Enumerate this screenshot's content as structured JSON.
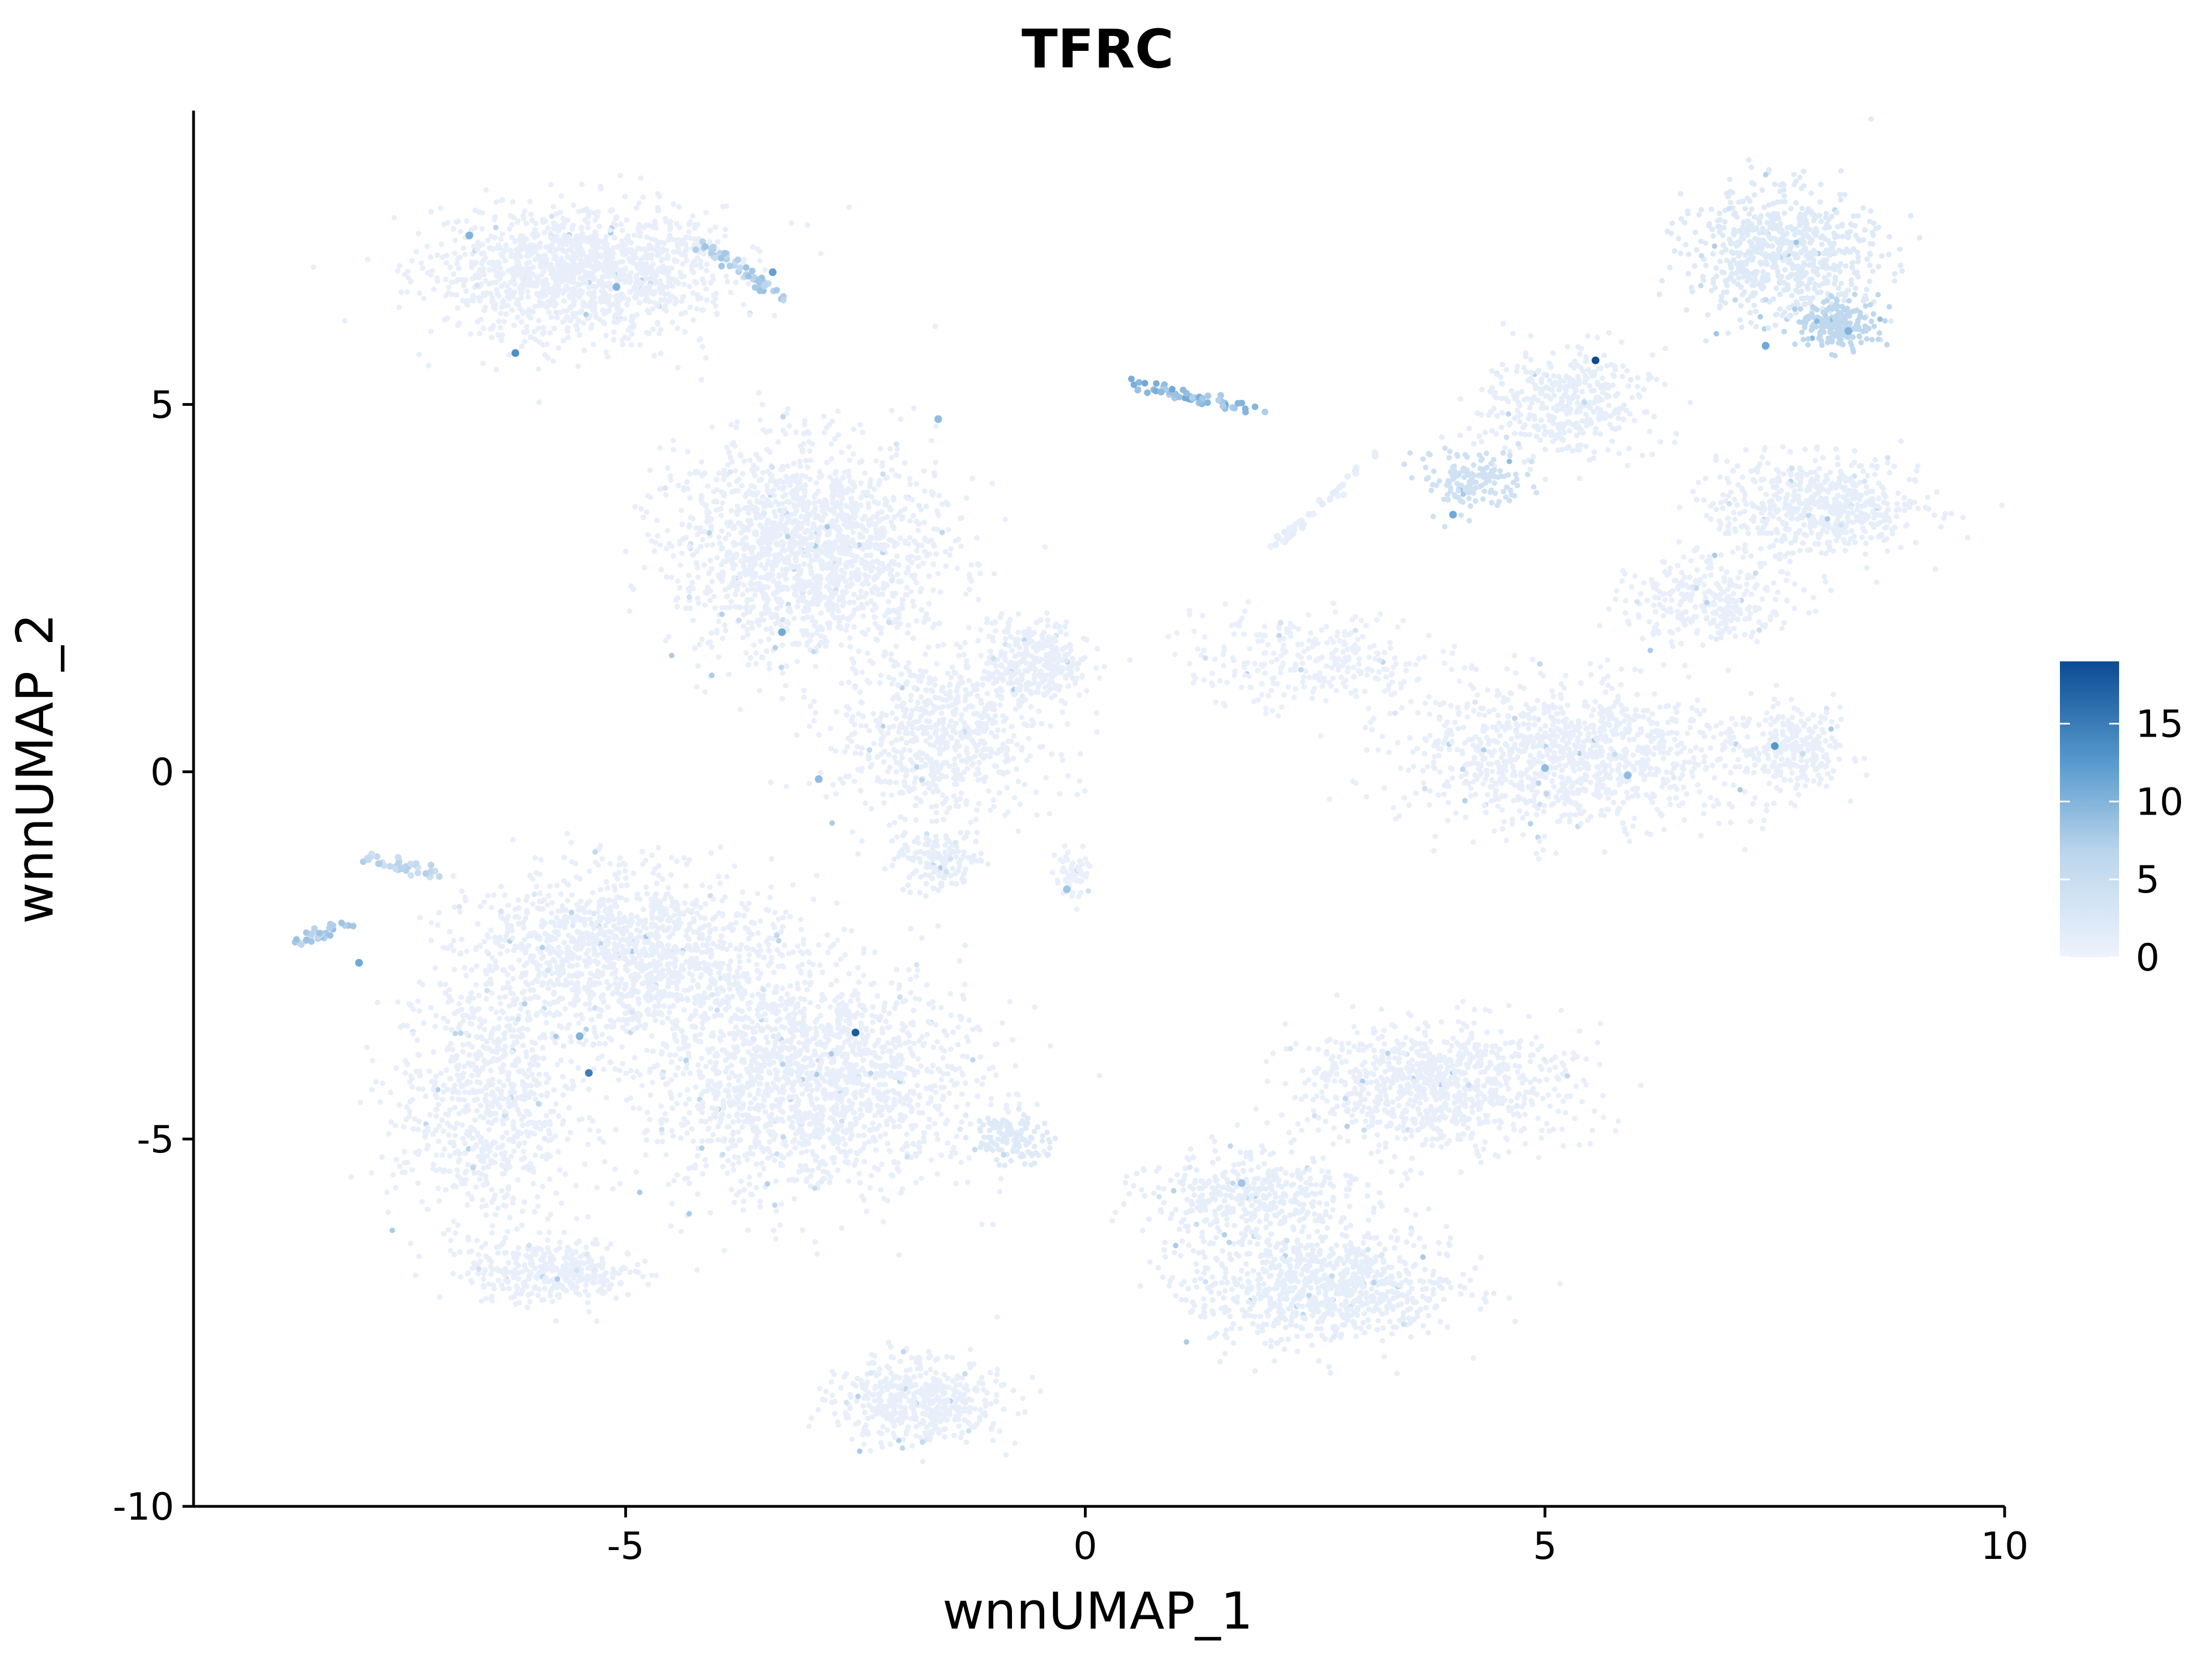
{
  "chart_data": {
    "type": "scatter",
    "title": "TFRC",
    "xlabel": "wnnUMAP_1",
    "ylabel": "wnnUMAP_2",
    "xlim": [
      -9.7,
      10
    ],
    "ylim": [
      -10,
      9
    ],
    "x_ticks": [
      -5,
      0,
      5,
      10
    ],
    "x_tick_labels": [
      "-5",
      "0",
      "5",
      "10"
    ],
    "y_ticks": [
      -10,
      -5,
      0,
      5
    ],
    "y_tick_labels": [
      "-10",
      "-5",
      "0",
      "5"
    ],
    "grid": false,
    "legend": {
      "position": "right",
      "type": "colorbar",
      "min": 0,
      "max": 19,
      "ticks": [
        0,
        5,
        10,
        15
      ],
      "tick_labels": [
        "0",
        "5",
        "10",
        "15"
      ],
      "color_low": "#eef3fc",
      "color_high": "#0b4b93"
    },
    "clusters": [
      {
        "center": [
          -5.5,
          6.8
        ],
        "spread": [
          1.4,
          0.8
        ],
        "n": 1400,
        "value": 0.4
      },
      {
        "center": [
          -3.0,
          3.0
        ],
        "spread": [
          1.3,
          1.3
        ],
        "n": 1700,
        "value": 0.4
      },
      {
        "center": [
          -1.6,
          0.5
        ],
        "spread": [
          1.0,
          1.1
        ],
        "n": 700,
        "value": 0.4
      },
      {
        "center": [
          -0.5,
          1.5
        ],
        "spread": [
          0.5,
          0.5
        ],
        "n": 300,
        "value": 0.4
      },
      {
        "center": [
          -1.6,
          -1.2
        ],
        "spread": [
          0.4,
          0.4
        ],
        "n": 150,
        "value": 0.5
      },
      {
        "center": [
          -0.1,
          -1.4
        ],
        "spread": [
          0.2,
          0.3
        ],
        "n": 60,
        "value": 0.3
      },
      {
        "center": [
          7.6,
          7.0
        ],
        "spread": [
          0.9,
          0.8
        ],
        "n": 700,
        "value": 1.0
      },
      {
        "center": [
          8.2,
          6.1
        ],
        "spread": [
          0.4,
          0.3
        ],
        "n": 200,
        "value": 3.0
      },
      {
        "center": [
          5.2,
          5.0
        ],
        "spread": [
          0.8,
          0.7
        ],
        "n": 400,
        "value": 0.6
      },
      {
        "center": [
          4.2,
          4.0
        ],
        "spread": [
          0.5,
          0.4
        ],
        "n": 150,
        "value": 2.0
      },
      {
        "center": [
          8.0,
          3.6
        ],
        "spread": [
          1.0,
          0.6
        ],
        "n": 600,
        "value": 0.5
      },
      {
        "center": [
          6.8,
          2.3
        ],
        "spread": [
          0.8,
          0.5
        ],
        "n": 300,
        "value": 0.4
      },
      {
        "center": [
          5.3,
          0.2
        ],
        "spread": [
          1.6,
          0.9
        ],
        "n": 1100,
        "value": 0.4
      },
      {
        "center": [
          7.7,
          0.3
        ],
        "spread": [
          0.5,
          0.5
        ],
        "n": 250,
        "value": 0.4
      },
      {
        "center": [
          2.5,
          1.5
        ],
        "spread": [
          1.2,
          0.6
        ],
        "n": 300,
        "value": 0.3
      },
      {
        "center": [
          -5.0,
          -2.5
        ],
        "spread": [
          1.5,
          1.0
        ],
        "n": 1300,
        "value": 0.4
      },
      {
        "center": [
          -3.0,
          -4.2
        ],
        "spread": [
          1.6,
          1.4
        ],
        "n": 1800,
        "value": 0.4
      },
      {
        "center": [
          -6.5,
          -4.5
        ],
        "spread": [
          0.9,
          1.6
        ],
        "n": 800,
        "value": 0.4
      },
      {
        "center": [
          -5.8,
          -6.8
        ],
        "spread": [
          0.8,
          0.4
        ],
        "n": 350,
        "value": 0.4
      },
      {
        "center": [
          -1.8,
          -8.6
        ],
        "spread": [
          0.8,
          0.5
        ],
        "n": 500,
        "value": 0.4
      },
      {
        "center": [
          3.8,
          -4.3
        ],
        "spread": [
          1.3,
          0.8
        ],
        "n": 900,
        "value": 0.4
      },
      {
        "center": [
          2.6,
          -7.0
        ],
        "spread": [
          1.3,
          0.7
        ],
        "n": 900,
        "value": 0.5
      },
      {
        "center": [
          1.8,
          -5.8
        ],
        "spread": [
          1.0,
          0.5
        ],
        "n": 400,
        "value": 0.5
      },
      {
        "center": [
          -0.8,
          -5.0
        ],
        "spread": [
          0.4,
          0.3
        ],
        "n": 120,
        "value": 1.0
      }
    ],
    "strands": [
      {
        "from": [
          0.5,
          5.3
        ],
        "to": [
          1.9,
          4.9
        ],
        "n": 60,
        "value": 6.0
      },
      {
        "from": [
          -8.6,
          -2.3
        ],
        "to": [
          -8.0,
          -2.1
        ],
        "n": 30,
        "value": 4.0
      },
      {
        "from": [
          -7.8,
          -1.2
        ],
        "to": [
          -7.0,
          -1.4
        ],
        "n": 40,
        "value": 3.0
      },
      {
        "from": [
          -4.2,
          7.2
        ],
        "to": [
          -3.3,
          6.5
        ],
        "n": 50,
        "value": 4.0
      },
      {
        "from": [
          2.0,
          3.0
        ],
        "to": [
          3.2,
          4.3
        ],
        "n": 40,
        "value": 0.5
      }
    ],
    "highlights": [
      {
        "x": 5.55,
        "y": 5.6,
        "value": 19
      },
      {
        "x": -2.5,
        "y": -3.55,
        "value": 17
      },
      {
        "x": -5.4,
        "y": -4.1,
        "value": 13
      },
      {
        "x": -6.2,
        "y": 5.7,
        "value": 11
      },
      {
        "x": 7.5,
        "y": 0.35,
        "value": 10
      },
      {
        "x": -3.3,
        "y": 1.9,
        "value": 8
      },
      {
        "x": 7.4,
        "y": 5.8,
        "value": 8
      },
      {
        "x": -6.7,
        "y": 7.3,
        "value": 7
      },
      {
        "x": 5.0,
        "y": 0.05,
        "value": 6
      },
      {
        "x": 5.9,
        "y": -0.05,
        "value": 6
      },
      {
        "x": -5.5,
        "y": -3.6,
        "value": 7
      },
      {
        "x": -7.9,
        "y": -2.6,
        "value": 8
      },
      {
        "x": 4.0,
        "y": 3.5,
        "value": 8
      },
      {
        "x": -1.6,
        "y": 4.8,
        "value": 6
      },
      {
        "x": -0.2,
        "y": -1.6,
        "value": 5
      },
      {
        "x": -2.9,
        "y": -0.1,
        "value": 6
      },
      {
        "x": -5.1,
        "y": 6.6,
        "value": 7
      },
      {
        "x": -3.4,
        "y": 6.8,
        "value": 9
      },
      {
        "x": 1.7,
        "y": -5.6,
        "value": 5
      },
      {
        "x": 8.3,
        "y": 6.0,
        "value": 7
      }
    ]
  }
}
